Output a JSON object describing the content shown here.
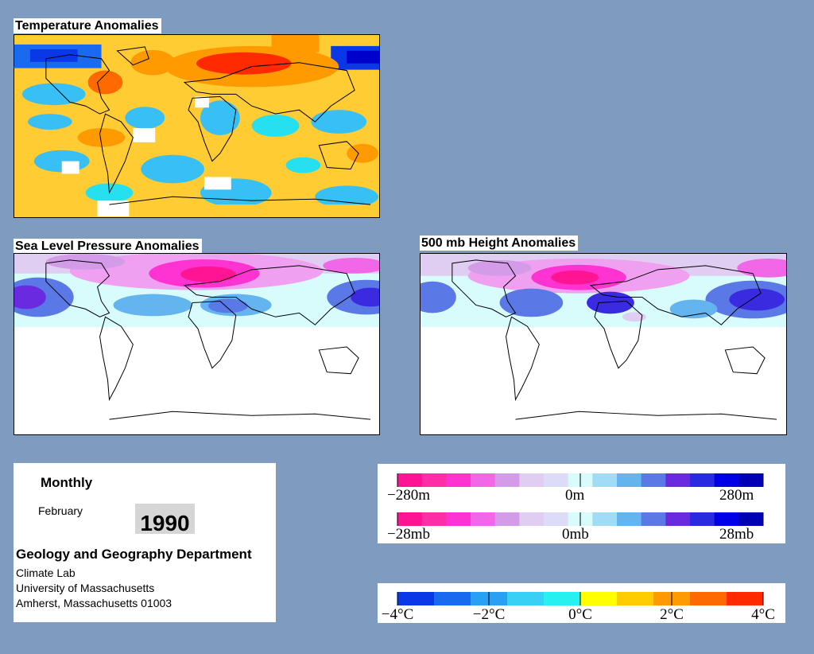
{
  "maps": {
    "temperature": {
      "title": "Temperature Anomalies"
    },
    "slp": {
      "title": "Sea Level Pressure Anomalies"
    },
    "height500": {
      "title": "500 mb Height Anomalies"
    }
  },
  "info": {
    "period": "Monthly",
    "month": "February",
    "year": "1990",
    "department": "Geology and Geography Department",
    "lab": "Climate Lab",
    "university": "University of Massachusetts",
    "address": "Amherst, Massachusetts 01003"
  },
  "legends": {
    "height": {
      "min": "−280m",
      "mid": "0m",
      "max": "280m"
    },
    "pressure": {
      "min": "−28mb",
      "mid": "0mb",
      "max": "28mb"
    },
    "temperature": {
      "labels": [
        "−4°C",
        "−2°C",
        "0°C",
        "2°C",
        "4°C"
      ]
    }
  },
  "colors": {
    "background": "#7f9bc0",
    "pressure_scale": [
      "#ff1493",
      "#ff2ea6",
      "#ff33d2",
      "#f266e8",
      "#d49be8",
      "#e0cdf2",
      "#dcdcf8",
      "#d8fcfc",
      "#a0dcf4",
      "#64b4f0",
      "#5a78e6",
      "#6a2ae0",
      "#2a2ae0",
      "#0000e6",
      "#0000b4"
    ],
    "temperature_scale": [
      "#0a38e6",
      "#1a6af0",
      "#2aa0f4",
      "#38d0f4",
      "#26f0f0",
      "#ffff00",
      "#ffcc00",
      "#ff9a00",
      "#ff6a00",
      "#ff2a00"
    ]
  }
}
